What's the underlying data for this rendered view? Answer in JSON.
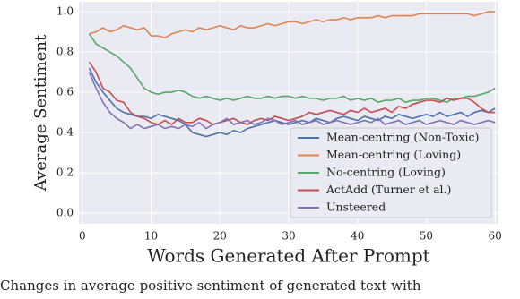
{
  "chart_data": {
    "type": "line",
    "xlabel": "Words Generated After Prompt",
    "ylabel": "Average Sentiment",
    "caption": "Changes in average positive sentiment of generated text with",
    "x": [
      1,
      2,
      3,
      4,
      5,
      6,
      7,
      8,
      9,
      10,
      11,
      12,
      13,
      14,
      15,
      16,
      17,
      18,
      19,
      20,
      21,
      22,
      23,
      24,
      25,
      26,
      27,
      28,
      29,
      30,
      31,
      32,
      33,
      34,
      35,
      36,
      37,
      38,
      39,
      40,
      41,
      42,
      43,
      44,
      45,
      46,
      47,
      48,
      49,
      50,
      51,
      52,
      53,
      54,
      55,
      56,
      57,
      58,
      59,
      60
    ],
    "series": [
      {
        "name": "Mean-centring (Non-Toxic)",
        "color": "#4c72b0",
        "values": [
          0.72,
          0.65,
          0.6,
          0.56,
          0.52,
          0.5,
          0.49,
          0.48,
          0.48,
          0.47,
          0.49,
          0.48,
          0.47,
          0.46,
          0.44,
          0.4,
          0.39,
          0.38,
          0.39,
          0.4,
          0.39,
          0.41,
          0.4,
          0.42,
          0.43,
          0.44,
          0.45,
          0.46,
          0.45,
          0.44,
          0.45,
          0.46,
          0.45,
          0.47,
          0.46,
          0.45,
          0.47,
          0.48,
          0.47,
          0.46,
          0.48,
          0.47,
          0.46,
          0.48,
          0.47,
          0.49,
          0.48,
          0.47,
          0.48,
          0.49,
          0.48,
          0.5,
          0.48,
          0.49,
          0.5,
          0.48,
          0.5,
          0.51,
          0.5,
          0.52
        ]
      },
      {
        "name": "Mean-centring (Loving)",
        "color": "#dd8452",
        "values": [
          0.89,
          0.9,
          0.92,
          0.9,
          0.91,
          0.93,
          0.92,
          0.91,
          0.92,
          0.88,
          0.88,
          0.87,
          0.89,
          0.9,
          0.91,
          0.9,
          0.92,
          0.91,
          0.92,
          0.93,
          0.92,
          0.91,
          0.93,
          0.92,
          0.92,
          0.93,
          0.94,
          0.93,
          0.94,
          0.95,
          0.95,
          0.94,
          0.95,
          0.96,
          0.95,
          0.96,
          0.96,
          0.97,
          0.96,
          0.97,
          0.97,
          0.97,
          0.98,
          0.97,
          0.98,
          0.98,
          0.98,
          0.98,
          0.99,
          0.99,
          0.99,
          0.99,
          0.99,
          0.99,
          0.99,
          0.99,
          0.98,
          0.99,
          1.0,
          1.0
        ]
      },
      {
        "name": "No-centring (Loving)",
        "color": "#55a868",
        "values": [
          0.89,
          0.84,
          0.82,
          0.8,
          0.78,
          0.75,
          0.72,
          0.67,
          0.62,
          0.6,
          0.59,
          0.6,
          0.6,
          0.61,
          0.6,
          0.58,
          0.57,
          0.58,
          0.57,
          0.56,
          0.57,
          0.56,
          0.57,
          0.58,
          0.57,
          0.57,
          0.58,
          0.57,
          0.58,
          0.58,
          0.57,
          0.58,
          0.57,
          0.57,
          0.56,
          0.57,
          0.57,
          0.58,
          0.56,
          0.57,
          0.56,
          0.57,
          0.55,
          0.56,
          0.56,
          0.57,
          0.55,
          0.56,
          0.56,
          0.57,
          0.57,
          0.56,
          0.55,
          0.57,
          0.57,
          0.58,
          0.58,
          0.59,
          0.6,
          0.62
        ]
      },
      {
        "name": "ActAdd (Turner et al.)",
        "color": "#c44e52",
        "values": [
          0.75,
          0.7,
          0.62,
          0.6,
          0.56,
          0.55,
          0.5,
          0.48,
          0.47,
          0.45,
          0.44,
          0.46,
          0.44,
          0.47,
          0.45,
          0.45,
          0.47,
          0.46,
          0.44,
          0.45,
          0.46,
          0.47,
          0.45,
          0.44,
          0.46,
          0.47,
          0.46,
          0.48,
          0.47,
          0.46,
          0.47,
          0.48,
          0.5,
          0.49,
          0.5,
          0.51,
          0.5,
          0.49,
          0.51,
          0.5,
          0.52,
          0.5,
          0.51,
          0.52,
          0.5,
          0.53,
          0.52,
          0.54,
          0.55,
          0.56,
          0.56,
          0.55,
          0.57,
          0.56,
          0.57,
          0.57,
          0.55,
          0.52,
          0.5,
          0.5
        ]
      },
      {
        "name": "Unsteered",
        "color": "#8172b3",
        "values": [
          0.7,
          0.62,
          0.55,
          0.5,
          0.47,
          0.45,
          0.42,
          0.44,
          0.42,
          0.43,
          0.44,
          0.42,
          0.43,
          0.42,
          0.44,
          0.43,
          0.45,
          0.42,
          0.44,
          0.45,
          0.47,
          0.44,
          0.45,
          0.46,
          0.44,
          0.45,
          0.47,
          0.46,
          0.44,
          0.45,
          0.46,
          0.44,
          0.45,
          0.46,
          0.44,
          0.45,
          0.46,
          0.45,
          0.44,
          0.45,
          0.46,
          0.45,
          0.47,
          0.44,
          0.45,
          0.46,
          0.44,
          0.45,
          0.46,
          0.44,
          0.45,
          0.46,
          0.45,
          0.44,
          0.46,
          0.45,
          0.44,
          0.45,
          0.46,
          0.45
        ]
      }
    ],
    "xlim": [
      -0.5,
      60.5
    ],
    "xticks": [
      0,
      10,
      20,
      30,
      40,
      50,
      60
    ],
    "ylim": [
      -0.053,
      1.049
    ],
    "yticks": [
      {
        "value": 0,
        "label": "0.0"
      },
      0.2,
      0.4,
      0.6,
      0.8,
      {
        "value": 1,
        "label": "1.0"
      }
    ],
    "grid": true,
    "legend": "lower right"
  }
}
